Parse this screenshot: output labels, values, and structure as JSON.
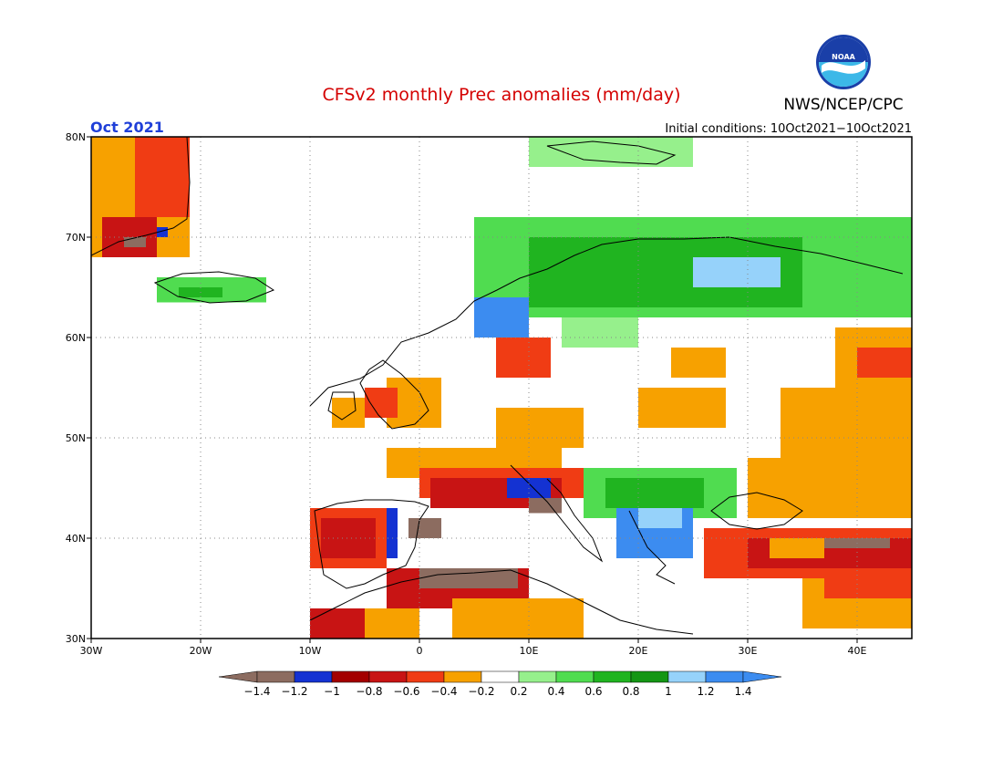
{
  "title": "CFSv2 monthly Prec anomalies (mm/day)",
  "period": "Oct 2021",
  "initial_conditions": "Initial conditions: 10Oct2021−10Oct2021",
  "agency": "NWS/NCEP/CPC",
  "logo": {
    "icon": "noaa-logo",
    "text": "NOAA"
  },
  "colors": {
    "title": "#d40000",
    "period": "#1f3fd8",
    "brown": "#8c6c60",
    "blue_dark": "#1432d2",
    "red_dark": "#a30000",
    "red": "#c81414",
    "orange_red": "#f03c14",
    "orange": "#f7a100",
    "green_light": "#96f08c",
    "green": "#50dc50",
    "green_dark": "#20b420",
    "green_darker": "#149614",
    "blue_light": "#96d2fa",
    "blue": "#3c8cf0"
  },
  "map": {
    "lon_range": [
      -30,
      45
    ],
    "lat_range": [
      30,
      80
    ],
    "lon_ticks": [
      "30W",
      "20W",
      "10W",
      "0",
      "10E",
      "20E",
      "30E",
      "40E"
    ],
    "lat_ticks": [
      "30N",
      "40N",
      "50N",
      "60N",
      "70N",
      "80N"
    ]
  },
  "colorbar": {
    "labels": [
      "−1.4",
      "−1.2",
      "−1",
      "−0.8",
      "−0.6",
      "−0.4",
      "−0.2",
      "0.2",
      "0.4",
      "0.6",
      "0.8",
      "1",
      "1.2",
      "1.4"
    ],
    "colors": [
      "#8c6c60",
      "#1432d2",
      "#a30000",
      "#c81414",
      "#f03c14",
      "#f7a100",
      "#ffffff",
      "#96f08c",
      "#50dc50",
      "#20b420",
      "#149614",
      "#96d2fa",
      "#3c8cf0"
    ],
    "left_arrow_color": "#8c6c60",
    "right_arrow_color": "#3c8cf0"
  },
  "anomaly_regions": [
    {
      "category": "orange",
      "lon": [
        -30,
        -21
      ],
      "lat": [
        68,
        80
      ]
    },
    {
      "category": "orange_red",
      "lon": [
        -26,
        -21
      ],
      "lat": [
        72,
        80
      ]
    },
    {
      "category": "red",
      "lon": [
        -29,
        -24
      ],
      "lat": [
        68,
        72
      ]
    },
    {
      "category": "brown",
      "lon": [
        -27,
        -25
      ],
      "lat": [
        69,
        70
      ]
    },
    {
      "category": "blue_dark",
      "lon": [
        -24,
        -23
      ],
      "lat": [
        70,
        71
      ]
    },
    {
      "category": "green",
      "lon": [
        -24,
        -14
      ],
      "lat": [
        63.5,
        66
      ]
    },
    {
      "category": "green_dark",
      "lon": [
        -22,
        -18
      ],
      "lat": [
        64,
        65
      ]
    },
    {
      "category": "green_light",
      "lon": [
        10,
        25
      ],
      "lat": [
        77,
        80
      ]
    },
    {
      "category": "green",
      "lon": [
        5,
        45
      ],
      "lat": [
        62,
        72
      ]
    },
    {
      "category": "green_dark",
      "lon": [
        10,
        35
      ],
      "lat": [
        63,
        70
      ]
    },
    {
      "category": "blue_light",
      "lon": [
        25,
        33
      ],
      "lat": [
        65,
        68
      ]
    },
    {
      "category": "blue",
      "lon": [
        5,
        10
      ],
      "lat": [
        60,
        64
      ]
    },
    {
      "category": "green_light",
      "lon": [
        13,
        20
      ],
      "lat": [
        59,
        62
      ]
    },
    {
      "category": "orange",
      "lon": [
        38,
        45
      ],
      "lat": [
        55,
        61
      ]
    },
    {
      "category": "orange_red",
      "lon": [
        40,
        45
      ],
      "lat": [
        56,
        59
      ]
    },
    {
      "category": "orange",
      "lon": [
        33,
        45
      ],
      "lat": [
        48,
        55
      ]
    },
    {
      "category": "orange",
      "lon": [
        20,
        28
      ],
      "lat": [
        51,
        55
      ]
    },
    {
      "category": "orange",
      "lon": [
        23,
        28
      ],
      "lat": [
        56,
        59
      ]
    },
    {
      "category": "orange",
      "lon": [
        -3,
        2
      ],
      "lat": [
        51,
        56
      ]
    },
    {
      "category": "orange_red",
      "lon": [
        -5,
        -2
      ],
      "lat": [
        52,
        55
      ]
    },
    {
      "category": "orange",
      "lon": [
        -8,
        -5
      ],
      "lat": [
        51,
        54
      ]
    },
    {
      "category": "orange",
      "lon": [
        7,
        15
      ],
      "lat": [
        49,
        53
      ]
    },
    {
      "category": "orange_red",
      "lon": [
        7,
        12
      ],
      "lat": [
        56,
        60
      ]
    },
    {
      "category": "orange",
      "lon": [
        -3,
        13
      ],
      "lat": [
        46,
        49
      ]
    },
    {
      "category": "orange_red",
      "lon": [
        0,
        15
      ],
      "lat": [
        44,
        47
      ]
    },
    {
      "category": "red",
      "lon": [
        1,
        13
      ],
      "lat": [
        43,
        46
      ]
    },
    {
      "category": "blue_dark",
      "lon": [
        8,
        12
      ],
      "lat": [
        44,
        46
      ]
    },
    {
      "category": "brown",
      "lon": [
        10,
        13
      ],
      "lat": [
        42.5,
        44
      ]
    },
    {
      "category": "green",
      "lon": [
        15,
        29
      ],
      "lat": [
        42,
        47
      ]
    },
    {
      "category": "green_dark",
      "lon": [
        17,
        26
      ],
      "lat": [
        43,
        46
      ]
    },
    {
      "category": "blue",
      "lon": [
        18,
        25
      ],
      "lat": [
        38,
        43
      ]
    },
    {
      "category": "blue_light",
      "lon": [
        20,
        24
      ],
      "lat": [
        41,
        43
      ]
    },
    {
      "category": "orange_red",
      "lon": [
        -10,
        -3
      ],
      "lat": [
        37,
        43
      ]
    },
    {
      "category": "red",
      "lon": [
        -9,
        -4
      ],
      "lat": [
        38,
        42
      ]
    },
    {
      "category": "blue_dark",
      "lon": [
        -3,
        -2
      ],
      "lat": [
        38,
        43
      ]
    },
    {
      "category": "brown",
      "lon": [
        -1,
        2
      ],
      "lat": [
        40,
        42
      ]
    },
    {
      "category": "orange_red",
      "lon": [
        26,
        45
      ],
      "lat": [
        36,
        41
      ]
    },
    {
      "category": "red",
      "lon": [
        30,
        45
      ],
      "lat": [
        37,
        40
      ]
    },
    {
      "category": "brown",
      "lon": [
        37,
        43
      ],
      "lat": [
        39,
        40
      ]
    },
    {
      "category": "orange",
      "lon": [
        32,
        37
      ],
      "lat": [
        38,
        40
      ]
    },
    {
      "category": "orange",
      "lon": [
        -10,
        0
      ],
      "lat": [
        30,
        33
      ]
    },
    {
      "category": "red",
      "lon": [
        -10,
        -5
      ],
      "lat": [
        30,
        33
      ]
    },
    {
      "category": "red",
      "lon": [
        -3,
        10
      ],
      "lat": [
        33,
        37
      ]
    },
    {
      "category": "brown",
      "lon": [
        0,
        9
      ],
      "lat": [
        35,
        37
      ]
    },
    {
      "category": "orange",
      "lon": [
        3,
        15
      ],
      "lat": [
        30,
        34
      ]
    },
    {
      "category": "orange",
      "lon": [
        35,
        45
      ],
      "lat": [
        31,
        36
      ]
    },
    {
      "category": "orange_red",
      "lon": [
        37,
        45
      ],
      "lat": [
        34,
        36
      ]
    },
    {
      "category": "orange",
      "lon": [
        30,
        45
      ],
      "lat": [
        42,
        48
      ]
    },
    {
      "category": "orange",
      "lon": [
        43,
        45
      ],
      "lat": [
        42,
        44
      ]
    }
  ]
}
